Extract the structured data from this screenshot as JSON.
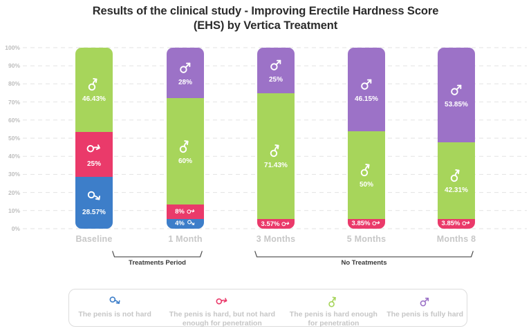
{
  "title": {
    "line1": "Results of the clinical study - Improving Erectile Hardness Score",
    "line2": "(EHS) by Vertica Treatment"
  },
  "chart_data": {
    "type": "bar",
    "stacked": true,
    "unit": "%",
    "title": "Results of the clinical study - Improving Erectile Hardness Score (EHS) by Vertica Treatment",
    "categories": [
      "Baseline",
      "1 Month",
      "3 Months",
      "5 Months",
      "Months 8"
    ],
    "y_ticks": [
      "100%",
      "90%",
      "80%",
      "70%",
      "60%",
      "50%",
      "40%",
      "30%",
      "20%",
      "10%",
      "0%"
    ],
    "ylim": [
      0,
      100
    ],
    "grid": "dashed horizontal",
    "legend_position": "bottom box",
    "series": [
      {
        "key": "not_hard",
        "label": "The penis is not hard",
        "color": "#3d7ec9",
        "icon": "mars-droop-icon",
        "values": [
          28.57,
          4,
          0,
          0,
          0
        ],
        "display": [
          "28.57%",
          "4%",
          "",
          "",
          ""
        ]
      },
      {
        "key": "hard_not_enough",
        "label": "The penis is hard, but not hard enough for penetration",
        "color": "#ea3a6a",
        "icon": "mars-curved-down-icon",
        "values": [
          25,
          8,
          3.57,
          3.85,
          3.85
        ],
        "display": [
          "25%",
          "8%",
          "3.57%",
          "3.85%",
          "3.85%"
        ]
      },
      {
        "key": "hard_enough",
        "label": "The penis is hard enough for penetration",
        "color": "#a7d55b",
        "icon": "mars-curved-up-icon",
        "values": [
          46.43,
          60,
          71.43,
          50,
          42.31
        ],
        "display": [
          "46.43%",
          "60%",
          "71.43%",
          "50%",
          "42.31%"
        ]
      },
      {
        "key": "fully_hard",
        "label": "The penis is fully hard",
        "color": "#9c72c7",
        "icon": "mars-straight-icon",
        "values": [
          0,
          28,
          25,
          46.15,
          53.85
        ],
        "display": [
          "",
          "28%",
          "25%",
          "46.15%",
          "53.85%"
        ]
      }
    ],
    "annotations": [
      {
        "label": "Treatments Period",
        "span": [
          "Baseline",
          "1 Month"
        ]
      },
      {
        "label": "No Treatments",
        "span": [
          "3 Months",
          "Months 8"
        ]
      }
    ]
  }
}
